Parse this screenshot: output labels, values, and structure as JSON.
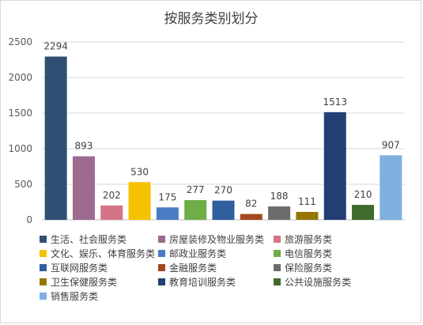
{
  "chart_data": {
    "type": "bar",
    "title": "按服务类别划分",
    "xlabel": "",
    "ylabel": "",
    "ylim": [
      0,
      2500
    ],
    "yticks": [
      0,
      500,
      1000,
      1500,
      2000,
      2500
    ],
    "grid": true,
    "legend_position": "bottom",
    "series": [
      {
        "name": "生活、社会服务类",
        "value": 2294,
        "color": "#2f5072"
      },
      {
        "name": "房屋装修及物业服务类",
        "value": 893,
        "color": "#9c6b8e"
      },
      {
        "name": "旅游服务类",
        "value": 202,
        "color": "#d57486"
      },
      {
        "name": "文化、娱乐、体育服务类",
        "value": 530,
        "color": "#f6c200"
      },
      {
        "name": "邮政业服务类",
        "value": 175,
        "color": "#4a7cc4"
      },
      {
        "name": "电信服务类",
        "value": 277,
        "color": "#6fad47"
      },
      {
        "name": "互联网服务类",
        "value": 270,
        "color": "#2f5f9e"
      },
      {
        "name": "金融服务类",
        "value": 82,
        "color": "#a3481f"
      },
      {
        "name": "保险服务类",
        "value": 188,
        "color": "#6c6c6c"
      },
      {
        "name": "卫生保健服务类",
        "value": 111,
        "color": "#957600"
      },
      {
        "name": "教育培训服务类",
        "value": 1513,
        "color": "#233e74"
      },
      {
        "name": "公共设施服务类",
        "value": 210,
        "color": "#3f6b2d"
      },
      {
        "name": "销售服务类",
        "value": 907,
        "color": "#7fb0e0"
      }
    ]
  }
}
